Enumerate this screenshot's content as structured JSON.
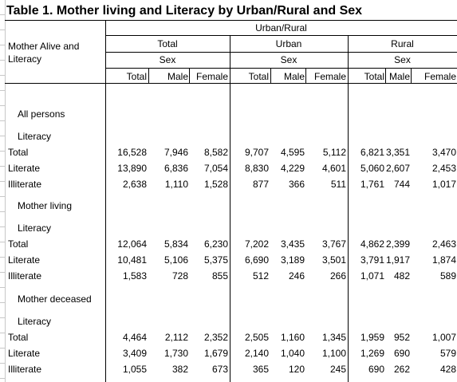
{
  "title": "Table 1. Mother living and Literacy by Urban/Rural and Sex",
  "stub_header": [
    "Mother Alive and",
    "Literacy"
  ],
  "spanner": "Urban/Rural",
  "groups": [
    {
      "label": "Total",
      "sub": "Sex"
    },
    {
      "label": "Urban",
      "sub": "Sex"
    },
    {
      "label": "Rural",
      "sub": "Sex"
    }
  ],
  "cols": [
    "Total",
    "Male",
    "Female",
    "Total",
    "Male",
    "Female",
    "Total",
    "Male",
    "Female"
  ],
  "sections": [
    {
      "heading": "All persons",
      "subheading": "Literacy",
      "rows": [
        {
          "label": "Total",
          "values": [
            "16,528",
            "7,946",
            "8,582",
            "9,707",
            "4,595",
            "5,112",
            "6,821",
            "3,351",
            "3,470"
          ]
        },
        {
          "label": "Literate",
          "values": [
            "13,890",
            "6,836",
            "7,054",
            "8,830",
            "4,229",
            "4,601",
            "5,060",
            "2,607",
            "2,453"
          ]
        },
        {
          "label": "Illiterate",
          "values": [
            "2,638",
            "1,110",
            "1,528",
            "877",
            "366",
            "511",
            "1,761",
            "744",
            "1,017"
          ]
        }
      ]
    },
    {
      "heading": "Mother living",
      "subheading": "Literacy",
      "rows": [
        {
          "label": "Total",
          "values": [
            "12,064",
            "5,834",
            "6,230",
            "7,202",
            "3,435",
            "3,767",
            "4,862",
            "2,399",
            "2,463"
          ]
        },
        {
          "label": "Literate",
          "values": [
            "10,481",
            "5,106",
            "5,375",
            "6,690",
            "3,189",
            "3,501",
            "3,791",
            "1,917",
            "1,874"
          ]
        },
        {
          "label": "Illiterate",
          "values": [
            "1,583",
            "728",
            "855",
            "512",
            "246",
            "266",
            "1,071",
            "482",
            "589"
          ]
        }
      ]
    },
    {
      "heading": "Mother deceased",
      "subheading": "Literacy",
      "rows": [
        {
          "label": "Total",
          "values": [
            "4,464",
            "2,112",
            "2,352",
            "2,505",
            "1,160",
            "1,345",
            "1,959",
            "952",
            "1,007"
          ]
        },
        {
          "label": "Literate",
          "values": [
            "3,409",
            "1,730",
            "1,679",
            "2,140",
            "1,040",
            "1,100",
            "1,269",
            "690",
            "579"
          ]
        },
        {
          "label": "Illiterate",
          "values": [
            "1,055",
            "382",
            "673",
            "365",
            "120",
            "245",
            "690",
            "262",
            "428"
          ]
        }
      ]
    }
  ]
}
